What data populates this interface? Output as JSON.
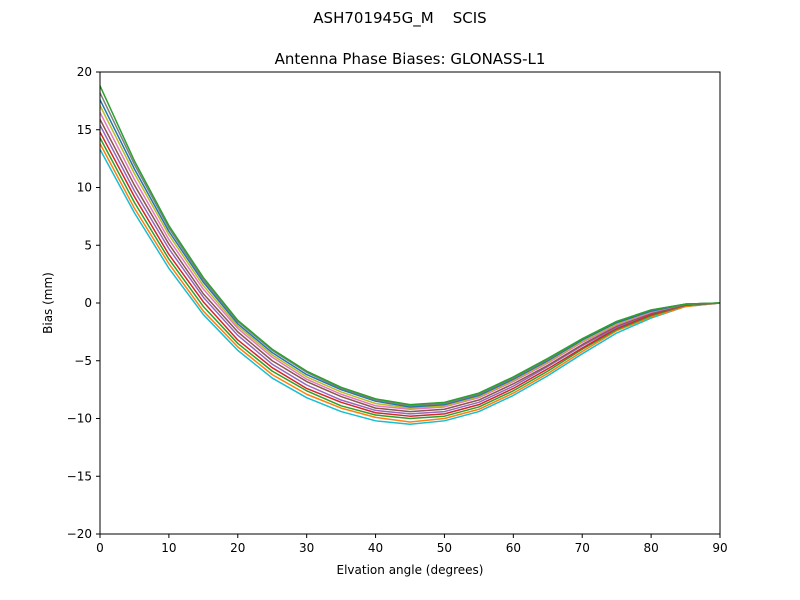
{
  "figure": {
    "suptitle": "ASH701945G_M    SCIS"
  },
  "chart_data": {
    "type": "line",
    "title": "Antenna Phase Biases: GLONASS-L1",
    "xlabel": "Elvation angle (degrees)",
    "ylabel": "Bias (mm)",
    "xlim": [
      0,
      90
    ],
    "ylim": [
      -20,
      20
    ],
    "xticks": [
      0,
      10,
      20,
      30,
      40,
      50,
      60,
      70,
      80,
      90
    ],
    "yticks": [
      -20,
      -15,
      -10,
      -5,
      0,
      5,
      10,
      15,
      20
    ],
    "ytick_labels": [
      "−20",
      "−15",
      "−10",
      "−5",
      "0",
      "5",
      "10",
      "15",
      "20"
    ],
    "grid": false,
    "legend": "none",
    "x": [
      0,
      5,
      10,
      15,
      20,
      25,
      30,
      35,
      40,
      45,
      50,
      55,
      60,
      65,
      70,
      75,
      80,
      85,
      90
    ],
    "series": [
      {
        "color": "#17becf",
        "values": [
          13.3,
          7.8,
          3.0,
          -1.0,
          -4.1,
          -6.5,
          -8.2,
          -9.4,
          -10.2,
          -10.5,
          -10.2,
          -9.4,
          -8.0,
          -6.3,
          -4.4,
          -2.6,
          -1.3,
          -0.3,
          0.0
        ]
      },
      {
        "color": "#ff7f0e",
        "values": [
          13.8,
          8.2,
          3.4,
          -0.7,
          -3.8,
          -6.2,
          -7.9,
          -9.1,
          -9.9,
          -10.3,
          -10.0,
          -9.2,
          -7.8,
          -6.1,
          -4.2,
          -2.4,
          -1.2,
          -0.3,
          0.0
        ]
      },
      {
        "color": "#2ca02c",
        "values": [
          14.3,
          8.7,
          3.8,
          -0.3,
          -3.5,
          -5.9,
          -7.6,
          -8.9,
          -9.7,
          -10.0,
          -9.8,
          -9.0,
          -7.6,
          -5.9,
          -4.0,
          -2.3,
          -1.1,
          -0.2,
          0.0
        ]
      },
      {
        "color": "#d62728",
        "values": [
          14.8,
          9.2,
          4.2,
          0.1,
          -3.2,
          -5.6,
          -7.4,
          -8.6,
          -9.5,
          -9.8,
          -9.6,
          -8.8,
          -7.4,
          -5.7,
          -3.9,
          -2.2,
          -1.0,
          -0.2,
          0.0
        ]
      },
      {
        "color": "#9467bd",
        "values": [
          15.4,
          9.7,
          4.7,
          0.5,
          -2.8,
          -5.3,
          -7.1,
          -8.4,
          -9.3,
          -9.6,
          -9.4,
          -8.6,
          -7.2,
          -5.5,
          -3.7,
          -2.1,
          -0.9,
          -0.2,
          0.0
        ]
      },
      {
        "color": "#8c564b",
        "values": [
          15.9,
          10.2,
          5.1,
          0.8,
          -2.5,
          -5.0,
          -6.8,
          -8.1,
          -9.1,
          -9.4,
          -9.2,
          -8.4,
          -7.0,
          -5.4,
          -3.6,
          -2.0,
          -0.9,
          -0.2,
          0.0
        ]
      },
      {
        "color": "#e377c2",
        "values": [
          16.5,
          10.7,
          5.5,
          1.2,
          -2.2,
          -4.7,
          -6.6,
          -7.9,
          -8.9,
          -9.2,
          -9.0,
          -8.2,
          -6.8,
          -5.2,
          -3.4,
          -1.9,
          -0.8,
          -0.1,
          0.0
        ]
      },
      {
        "color": "#bcbd22",
        "values": [
          17.1,
          11.2,
          5.9,
          1.5,
          -2.0,
          -4.5,
          -6.4,
          -7.7,
          -8.7,
          -9.1,
          -8.9,
          -8.1,
          -6.7,
          -5.1,
          -3.3,
          -1.8,
          -0.7,
          -0.1,
          0.0
        ]
      },
      {
        "color": "#1f77b4",
        "values": [
          17.6,
          11.6,
          6.2,
          1.8,
          -1.8,
          -4.3,
          -6.2,
          -7.5,
          -8.5,
          -9.0,
          -8.8,
          -8.0,
          -6.6,
          -5.0,
          -3.2,
          -1.7,
          -0.7,
          -0.1,
          0.0
        ]
      },
      {
        "color": "#7f7f7f",
        "values": [
          18.2,
          12.0,
          6.5,
          2.0,
          -1.6,
          -4.1,
          -6.0,
          -7.4,
          -8.4,
          -8.9,
          -8.7,
          -7.9,
          -6.5,
          -4.9,
          -3.1,
          -1.6,
          -0.6,
          -0.1,
          0.0
        ]
      },
      {
        "color": "#2ca02c",
        "values": [
          18.8,
          12.3,
          6.7,
          2.2,
          -1.5,
          -4.0,
          -5.9,
          -7.3,
          -8.3,
          -8.8,
          -8.6,
          -7.8,
          -6.4,
          -4.8,
          -3.1,
          -1.6,
          -0.6,
          -0.1,
          0.0
        ]
      }
    ]
  }
}
